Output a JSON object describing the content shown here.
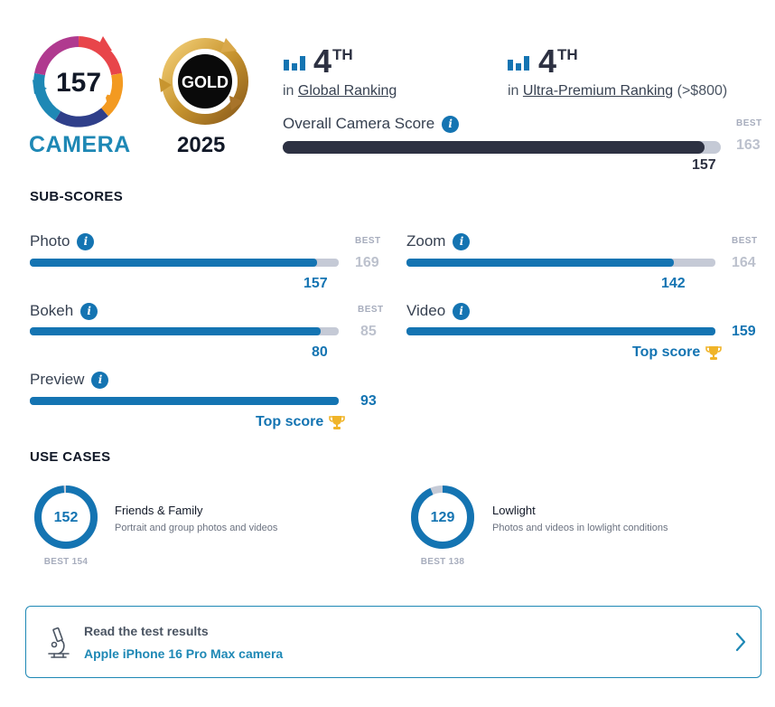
{
  "header": {
    "camera_score": "157",
    "camera_label": "CAMERA",
    "badge_label": "GOLD",
    "badge_year": "2025",
    "global_rank": {
      "number": "4",
      "suffix": "TH",
      "prefix": "in",
      "label": "Global Ranking"
    },
    "segment_rank": {
      "number": "4",
      "suffix": "TH",
      "prefix": "in",
      "label": "Ultra-Premium Ranking",
      "note": "(>$800)"
    },
    "overall": {
      "label": "Overall Camera Score",
      "best_label": "BEST",
      "best_value": "163",
      "score": "157",
      "score_num": 157,
      "best_num": 163
    }
  },
  "subscores": {
    "title": "SUB-SCORES",
    "items": [
      {
        "label": "Photo",
        "score": "157",
        "score_num": 157,
        "best_label": "BEST",
        "best": "169",
        "best_num": 169,
        "top": ""
      },
      {
        "label": "Zoom",
        "score": "142",
        "score_num": 142,
        "best_label": "BEST",
        "best": "164",
        "best_num": 164,
        "top": ""
      },
      {
        "label": "Bokeh",
        "score": "80",
        "score_num": 80,
        "best_label": "BEST",
        "best": "85",
        "best_num": 85,
        "top": ""
      },
      {
        "label": "Video",
        "score": "159",
        "score_num": 159,
        "best_label": "",
        "best": "",
        "best_num": 159,
        "top": "Top score"
      },
      {
        "label": "Preview",
        "score": "93",
        "score_num": 93,
        "best_label": "",
        "best": "",
        "best_num": 93,
        "top": "Top score"
      }
    ]
  },
  "use_cases": {
    "title": "USE CASES",
    "items": [
      {
        "score": "152",
        "score_num": 152,
        "best_num": 154,
        "title": "Friends & Family",
        "desc": "Portrait and group photos and videos",
        "best": "BEST 154"
      },
      {
        "score": "129",
        "score_num": 129,
        "best_num": 138,
        "title": "Lowlight",
        "desc": "Photos and videos in lowlight conditions",
        "best": "BEST 138"
      }
    ]
  },
  "cta": {
    "title": "Read the test results",
    "link": "Apple iPhone 16 Pro Max camera",
    "icon": "microscope-icon"
  },
  "colors": {
    "accent": "#1474b2",
    "dark_bar": "#2d3142",
    "track": "#c5cad6",
    "gold": "#c8952f"
  }
}
